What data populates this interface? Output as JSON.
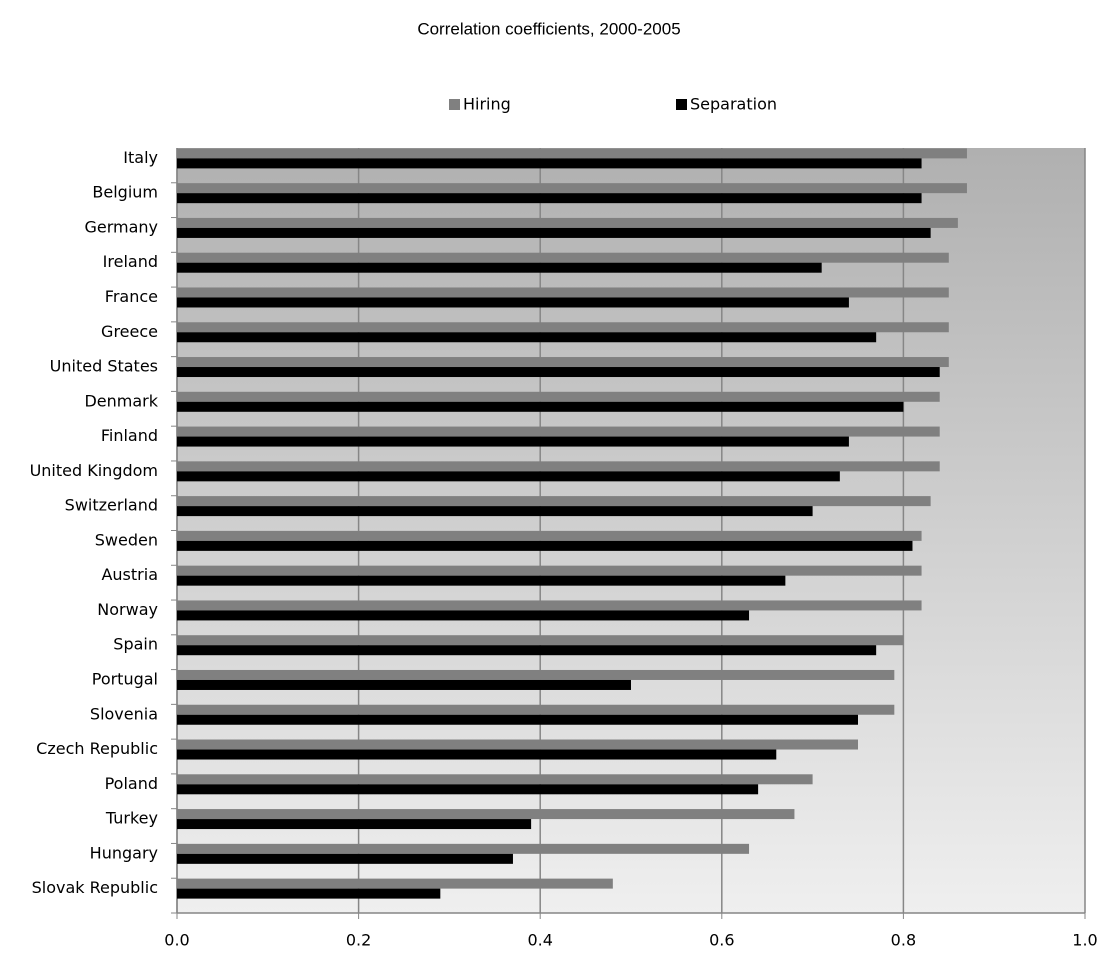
{
  "chart_data": {
    "type": "hbar",
    "title": "Correlation coefficients, 2000-2005",
    "categories": [
      "Italy",
      "Belgium",
      "Germany",
      "Ireland",
      "France",
      "Greece",
      "United States",
      "Denmark",
      "Finland",
      "United Kingdom",
      "Switzerland",
      "Sweden",
      "Austria",
      "Norway",
      "Spain",
      "Portugal",
      "Slovenia",
      "Czech Republic",
      "Poland",
      "Turkey",
      "Hungary",
      "Slovak Republic"
    ],
    "series": [
      {
        "name": "Hiring",
        "color": "#808080",
        "values": [
          0.87,
          0.87,
          0.86,
          0.85,
          0.85,
          0.85,
          0.85,
          0.84,
          0.84,
          0.84,
          0.83,
          0.82,
          0.82,
          0.82,
          0.8,
          0.79,
          0.79,
          0.75,
          0.7,
          0.68,
          0.63,
          0.48
        ]
      },
      {
        "name": "Separation",
        "color": "#000000",
        "values": [
          0.82,
          0.82,
          0.83,
          0.71,
          0.74,
          0.77,
          0.84,
          0.8,
          0.74,
          0.73,
          0.7,
          0.81,
          0.67,
          0.63,
          0.77,
          0.5,
          0.75,
          0.66,
          0.64,
          0.39,
          0.37,
          0.29
        ]
      }
    ],
    "xlim": [
      0,
      1
    ],
    "xticks": [
      {
        "value": 0,
        "label": "0.0"
      },
      {
        "value": 0.2,
        "label": "0.2"
      },
      {
        "value": 0.4,
        "label": "0.4"
      },
      {
        "value": 0.6,
        "label": "0.6"
      },
      {
        "value": 0.8,
        "label": "0.8"
      },
      {
        "value": 1,
        "label": "1.0"
      }
    ],
    "grid": true
  }
}
